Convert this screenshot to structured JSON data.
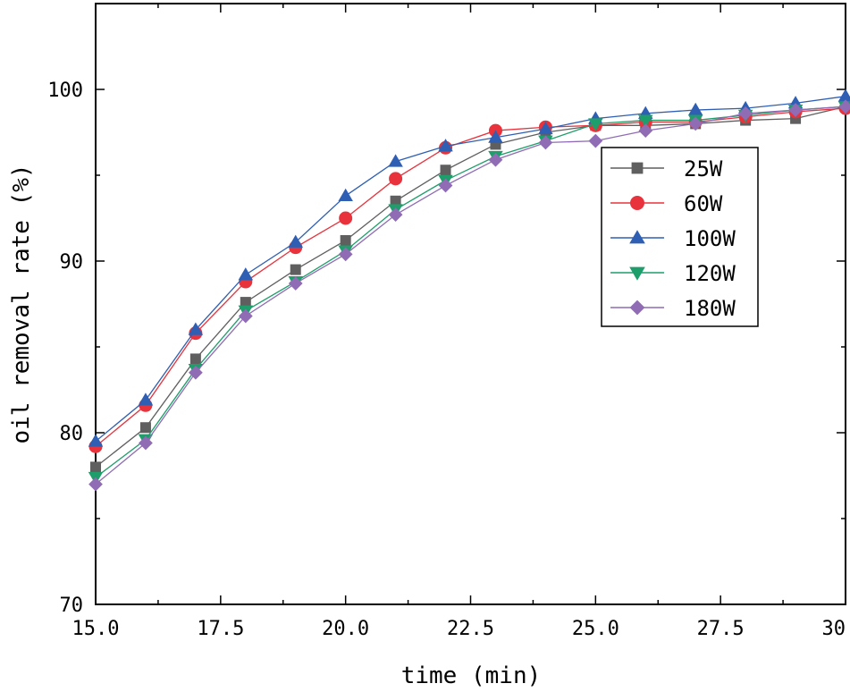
{
  "chart_data": {
    "type": "line",
    "xlabel": "time (min)",
    "ylabel": "oil removal rate (%)",
    "xlim": [
      15.0,
      30.0
    ],
    "ylim": [
      70,
      105
    ],
    "xticks": [
      "15.0",
      "17.5",
      "20.0",
      "22.5",
      "25.0",
      "27.5",
      "30.0"
    ],
    "xtick_values": [
      15.0,
      17.5,
      20.0,
      22.5,
      25.0,
      27.5,
      30.0
    ],
    "yticks": [
      "70",
      "80",
      "90",
      "100"
    ],
    "ytick_values": [
      70,
      80,
      90,
      100
    ],
    "x": [
      15,
      16,
      17,
      18,
      19,
      20,
      21,
      22,
      23,
      24,
      25,
      26,
      27,
      28,
      29,
      30
    ],
    "legend_position": "upper-right",
    "series": [
      {
        "name": "25W",
        "color": "#5f5f5f",
        "marker": "square",
        "values": [
          78.0,
          80.3,
          84.3,
          87.6,
          89.5,
          91.2,
          93.5,
          95.3,
          96.8,
          97.5,
          97.9,
          97.9,
          98.0,
          98.2,
          98.3,
          99.0
        ]
      },
      {
        "name": "60W",
        "color": "#e8323c",
        "marker": "circle",
        "values": [
          79.2,
          81.6,
          85.8,
          88.8,
          90.8,
          92.5,
          94.8,
          96.6,
          97.6,
          97.8,
          97.9,
          98.1,
          98.1,
          98.4,
          98.7,
          98.9
        ]
      },
      {
        "name": "100W",
        "color": "#2e5fb3",
        "marker": "triangle-up",
        "values": [
          79.5,
          81.9,
          86.0,
          89.2,
          91.1,
          93.8,
          95.8,
          96.7,
          97.2,
          97.7,
          98.3,
          98.6,
          98.8,
          98.9,
          99.2,
          99.6
        ]
      },
      {
        "name": "120W",
        "color": "#1e9e6a",
        "marker": "triangle-down",
        "values": [
          77.4,
          79.6,
          83.7,
          87.1,
          88.8,
          90.6,
          93.0,
          94.7,
          96.1,
          97.0,
          98.0,
          98.2,
          98.2,
          98.5,
          98.8,
          99.0
        ]
      },
      {
        "name": "180W",
        "color": "#8f6cb4",
        "marker": "diamond",
        "values": [
          77.0,
          79.4,
          83.5,
          86.8,
          88.7,
          90.4,
          92.7,
          94.4,
          95.9,
          96.9,
          97.0,
          97.6,
          98.0,
          98.6,
          98.8,
          99.0
        ]
      }
    ]
  }
}
